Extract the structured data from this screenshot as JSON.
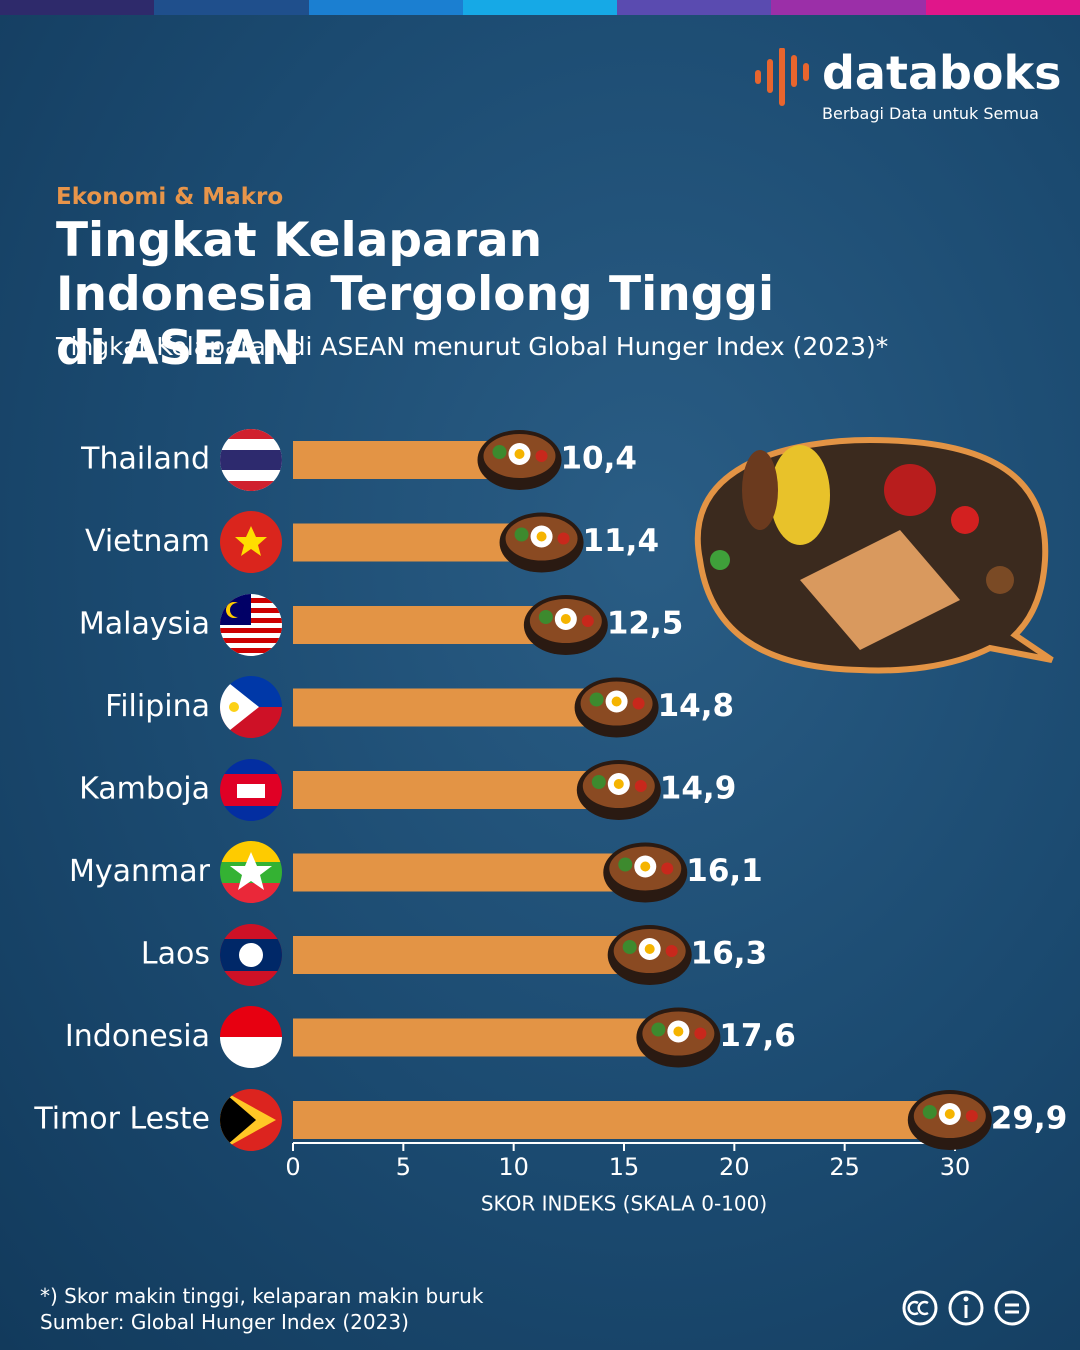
{
  "brand": {
    "name": "databoks",
    "tagline": "Berbagi Data untuk Semua"
  },
  "chart_data": {
    "type": "bar",
    "orientation": "horizontal",
    "category_tag": "Ekonomi & Makro",
    "title": "Tingkat Kelaparan Indonesia Tergolong Tinggi di ASEAN",
    "subtitle": "Tingkat Kelaparan di ASEAN menurut Global Hunger Index (2023)*",
    "categories": [
      "Thailand",
      "Vietnam",
      "Malaysia",
      "Filipina",
      "Kamboja",
      "Myanmar",
      "Laos",
      "Indonesia",
      "Timor Leste"
    ],
    "values": [
      10.4,
      11.4,
      12.5,
      14.8,
      14.9,
      16.1,
      16.3,
      17.6,
      29.9
    ],
    "value_labels": [
      "10,4",
      "11,4",
      "12,5",
      "14,8",
      "14,9",
      "16,1",
      "16,3",
      "17,6",
      "29,9"
    ],
    "color": "#e39445",
    "xlim": [
      0,
      30
    ],
    "xticks": [
      0,
      5,
      10,
      15,
      20,
      25,
      30
    ],
    "xlabel": "SKOR INDEKS (SKALA 0-100)"
  },
  "footnote": "*) Skor makin tinggi, kelaparan makin buruk",
  "source": "Sumber: Global Hunger Index (2023)"
}
